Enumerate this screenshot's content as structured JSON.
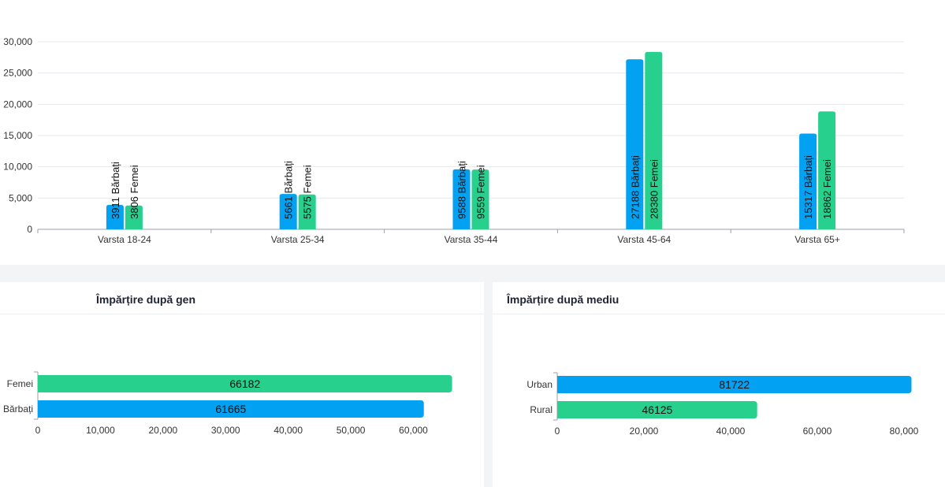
{
  "colors": {
    "barbati": "#03a1f2",
    "femei": "#28d08e",
    "grid": "#e6e8ee",
    "axis": "#9aa0aa",
    "text": "#333333"
  },
  "age_section": {
    "x_labels": [
      "Varsta 18-24",
      "Varsta 25-34",
      "Varsta 35-44",
      "Varsta 45-64",
      "Varsta 65+"
    ],
    "y_ticks": [
      "0",
      "5,000",
      "10,000",
      "15,000",
      "20,000",
      "25,000",
      "30,000"
    ],
    "series_label_barbati": "Bărbați",
    "series_label_femei": "Femei"
  },
  "gender_card": {
    "title": "Împărțire după gen",
    "x_ticks": [
      "0",
      "10,000",
      "20,000",
      "30,000",
      "40,000",
      "50,000",
      "60,000"
    ]
  },
  "environment_card": {
    "title": "Împărțire după mediu",
    "x_ticks": [
      "0",
      "20,000",
      "40,000",
      "60,000",
      "80,000"
    ]
  },
  "chart_data": [
    {
      "type": "bar",
      "orientation": "vertical",
      "categories": [
        "Varsta 18-24",
        "Varsta 25-34",
        "Varsta 35-44",
        "Varsta 45-64",
        "Varsta 65+"
      ],
      "series": [
        {
          "name": "Bărbați",
          "values": [
            3911,
            5661,
            9588,
            27188,
            15317
          ]
        },
        {
          "name": "Femei",
          "values": [
            3806,
            5575,
            9559,
            28380,
            18862
          ]
        }
      ],
      "ylim": [
        0,
        30000
      ],
      "grid": true
    },
    {
      "type": "bar",
      "orientation": "horizontal",
      "title": "Împărțire după gen",
      "categories": [
        "Femei",
        "Bărbați"
      ],
      "values": [
        66182,
        61665
      ],
      "xlim": [
        0,
        66182
      ]
    },
    {
      "type": "bar",
      "orientation": "horizontal",
      "title": "Împărțire după mediu",
      "categories": [
        "Urban",
        "Rural"
      ],
      "values": [
        81722,
        46125
      ],
      "xlim": [
        0,
        81722
      ]
    }
  ]
}
